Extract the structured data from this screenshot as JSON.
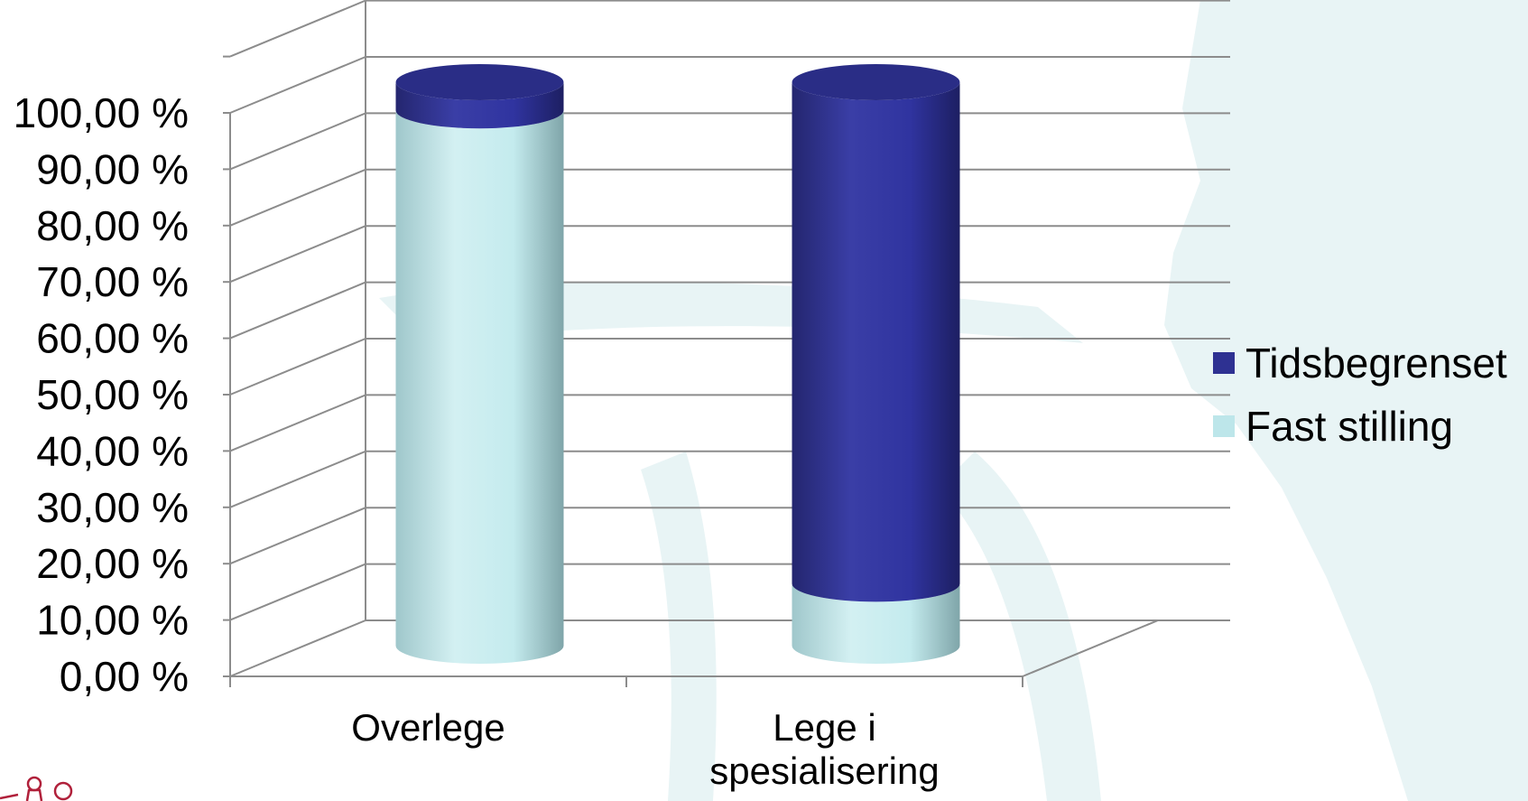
{
  "colors": {
    "watermark": "#e7f4f5",
    "tidsbegrenset": "#2e3192",
    "tidsbegrenset_light": "#3d41a8",
    "tidsbegrenset_dark": "#1f2168",
    "fast": "#bde6ea",
    "fast_light": "#d6f1f3",
    "fast_dark": "#8fb6ba",
    "grid": "#8c8c8c",
    "logo": "#b0203a"
  },
  "chart_data": {
    "type": "bar",
    "stacked": true,
    "three_d": true,
    "bar_shape": "cylinder",
    "title": "",
    "xlabel": "",
    "ylabel": "",
    "categories": [
      "Overlege",
      "Lege i\nspesialisering"
    ],
    "category_lines": [
      [
        "Overlege"
      ],
      [
        "Lege i",
        "spesialisering"
      ]
    ],
    "series": [
      {
        "name": "Fast stilling",
        "color": "#bde6ea",
        "values": [
          95,
          11
        ]
      },
      {
        "name": "Tidsbegrenset",
        "color": "#2e3192",
        "values": [
          5,
          89
        ]
      }
    ],
    "ylim": [
      0,
      100
    ],
    "yticks": [
      "0,00 %",
      "10,00 %",
      "20,00 %",
      "30,00 %",
      "40,00 %",
      "50,00 %",
      "60,00 %",
      "70,00 %",
      "80,00 %",
      "90,00 %",
      "100,00 %"
    ],
    "grid": true,
    "legend": {
      "position": "right",
      "entries": [
        "Tidsbegrenset",
        "Fast stilling"
      ]
    }
  }
}
